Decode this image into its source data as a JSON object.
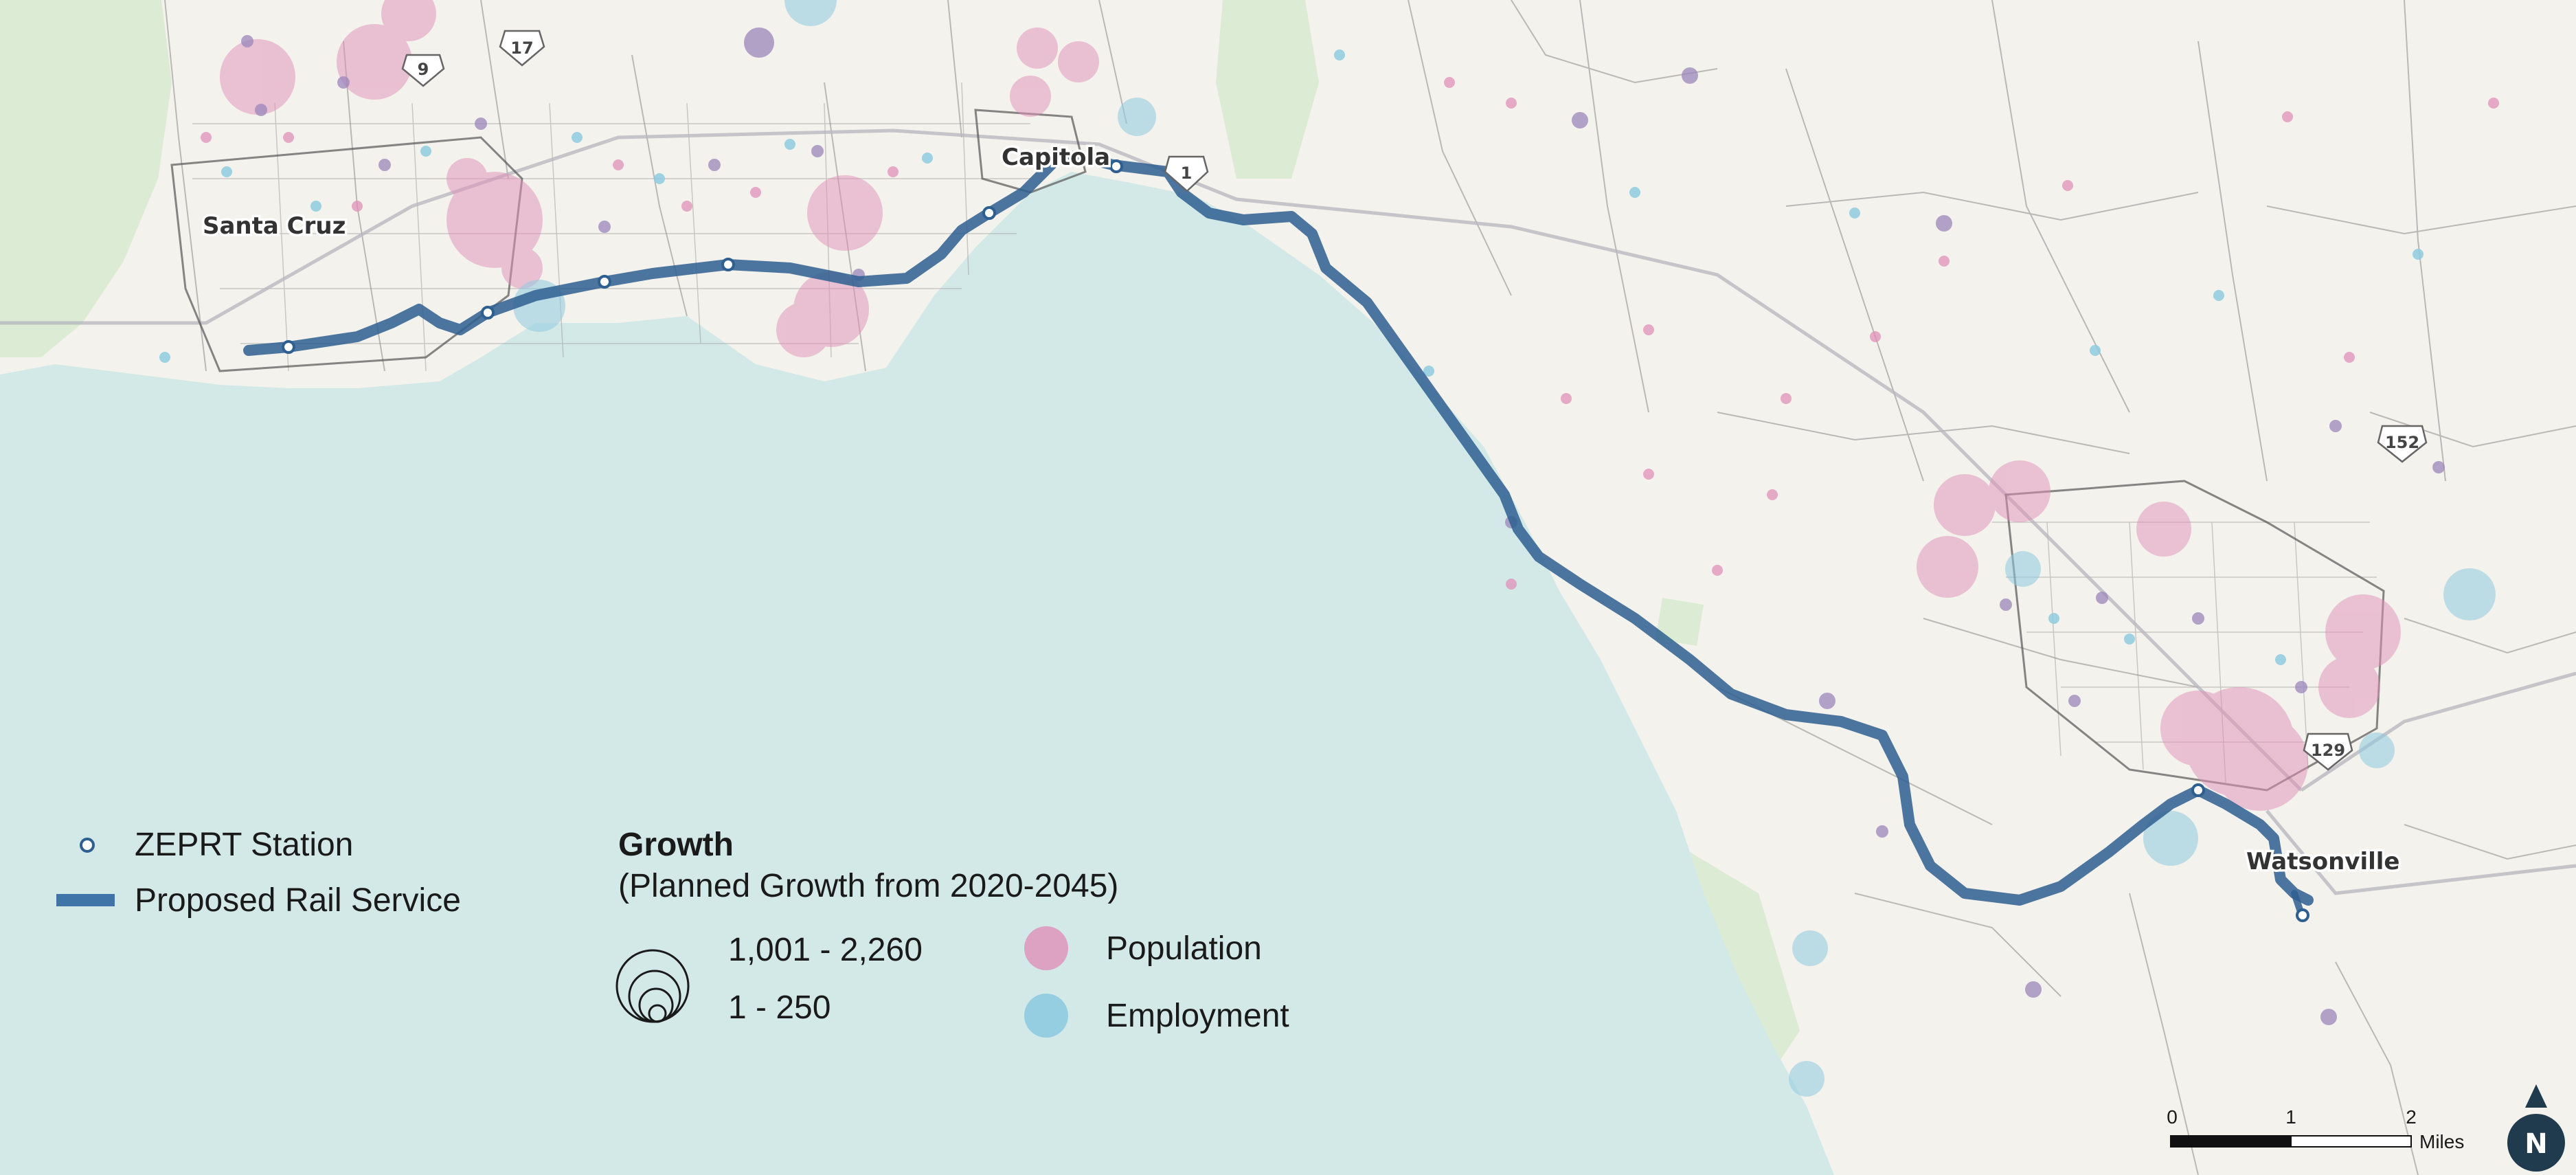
{
  "places": {
    "santa_cruz": "Santa Cruz",
    "capitola": "Capitola",
    "watsonville": "Watsonville"
  },
  "highways": [
    "9",
    "17",
    "1",
    "152",
    "129"
  ],
  "legend": {
    "station": "ZEPRT Station",
    "rail": "Proposed Rail Service",
    "growth_title": "Growth",
    "growth_subtitle": "(Planned Growth from 2020-2045)",
    "size_large": "1,001 - 2,260",
    "size_small": "1 - 250",
    "population": "Population",
    "employment": "Employment"
  },
  "scale": {
    "ticks": [
      "0",
      "1",
      "2"
    ],
    "unit": "Miles"
  },
  "north": "N",
  "colors": {
    "ocean": "#d3e9e8",
    "land": "#f4f2ec",
    "rail": "#3f74a8",
    "population": "#e08fb8",
    "employment": "#8ecbe0",
    "mixed": "#9b86bb",
    "parks": "#dcebd3"
  }
}
